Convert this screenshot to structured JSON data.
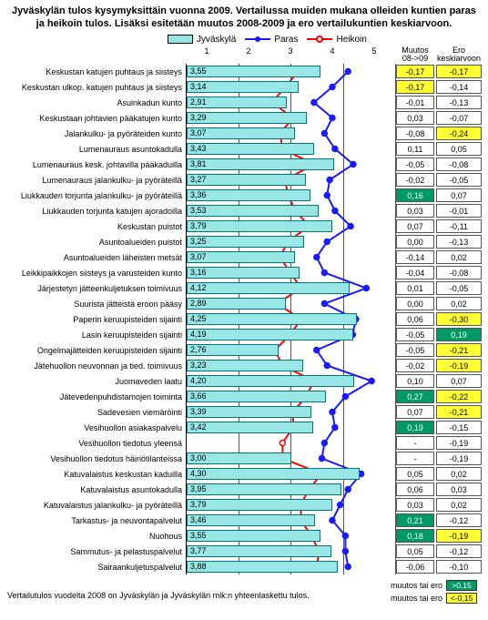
{
  "title": "Jyväskylän tulos kysymyksittäin vuonna 2009. Vertailussa muiden mukana olleiden kuntien paras ja heikoin tulos. Lisäksi esitetään muutos 2008-2009 ja ero vertailukuntien keskiarvoon.",
  "legend": {
    "bar": "Jyväskylä",
    "paras": "Paras",
    "heikoin": "Heikoin"
  },
  "columns": {
    "muutos": "Muutos 08->09",
    "ero": "Ero keskiarvoon"
  },
  "xaxis": {
    "min": 1,
    "max": 5,
    "ticks": [
      1,
      2,
      3,
      4,
      5
    ]
  },
  "colors": {
    "bar": "#99e6e6",
    "bar_border": "#007777",
    "paras": "#1a1aff",
    "heikoin": "#ff0000",
    "green": "#009966",
    "yellow": "#ffff33",
    "white": "#ffffff",
    "grid": "#555555"
  },
  "footnote": "Vertailutulos vuodelta 2008 on Jyväskylän ja Jyväskylän mlk:n yhteenlaskettu tulos.",
  "threshold": {
    "pos_label": "muutos tai ero",
    "pos_val": ">0,15",
    "neg_label": "muutos tai ero",
    "neg_val": "<-0,15"
  },
  "rows": [
    {
      "label": "Keskustan katujen puhtaus ja siisteys",
      "v": 3.55,
      "p": 4.1,
      "h": 3.15,
      "m": "-0,17",
      "e": "-0,17",
      "mc": "yellow",
      "ec": "yellow"
    },
    {
      "label": "Keskustan ulkop. katujen puhtaus ja siisteys",
      "v": 3.14,
      "p": 3.8,
      "h": 2.9,
      "m": "-0,17",
      "e": "-0,14",
      "mc": "yellow",
      "ec": "white"
    },
    {
      "label": "Asuinkadun kunto",
      "v": 2.91,
      "p": 3.45,
      "h": 2.65,
      "m": "-0,01",
      "e": "-0,13",
      "mc": "white",
      "ec": "white"
    },
    {
      "label": "Keskustaan johtavien pääkatujen kunto",
      "v": 3.29,
      "p": 3.8,
      "h": 3.05,
      "m": "0,03",
      "e": "-0,07",
      "mc": "white",
      "ec": "white"
    },
    {
      "label": "Jalankulku- ja pyöräteiden kunto",
      "v": 3.07,
      "p": 3.65,
      "h": 2.8,
      "m": "-0,08",
      "e": "-0,24",
      "mc": "white",
      "ec": "yellow"
    },
    {
      "label": "Lumenauraus asuntokadulla",
      "v": 3.43,
      "p": 3.85,
      "h": 2.85,
      "m": "0,11",
      "e": "0,05",
      "mc": "white",
      "ec": "white"
    },
    {
      "label": "Lumenauraus kesk. johtavilla pääkaduilla",
      "v": 3.81,
      "p": 4.2,
      "h": 3.45,
      "m": "-0,05",
      "e": "-0,08",
      "mc": "white",
      "ec": "white"
    },
    {
      "label": "Lumenauraus jalankulku- ja pyöräteillä",
      "v": 3.27,
      "p": 3.75,
      "h": 2.9,
      "m": "-0,02",
      "e": "-0,05",
      "mc": "white",
      "ec": "white"
    },
    {
      "label": "Liukkauden torjunta jalankulku- ja pyöräteillä",
      "v": 3.36,
      "p": 3.7,
      "h": 2.95,
      "m": "0,16",
      "e": "0,07",
      "mc": "green",
      "ec": "white"
    },
    {
      "label": "Liukkauden torjunta katujen ajoradoilla",
      "v": 3.53,
      "p": 3.85,
      "h": 3.1,
      "m": "0,03",
      "e": "-0,01",
      "mc": "white",
      "ec": "white"
    },
    {
      "label": "Keskustan puistot",
      "v": 3.79,
      "p": 4.15,
      "h": 3.35,
      "m": "0,07",
      "e": "-0,11",
      "mc": "white",
      "ec": "white"
    },
    {
      "label": "Asuntoalueiden puistot",
      "v": 3.25,
      "p": 3.7,
      "h": 2.95,
      "m": "0,00",
      "e": "-0,13",
      "mc": "white",
      "ec": "white"
    },
    {
      "label": "Asuntoalueiden läheisten metsät",
      "v": 3.07,
      "p": 3.5,
      "h": 2.8,
      "m": "-0,14",
      "e": "0,02",
      "mc": "white",
      "ec": "white"
    },
    {
      "label": "Leikkipaikkojen siisteys ja varusteiden kunto",
      "v": 3.16,
      "p": 3.65,
      "h": 3.0,
      "m": "-0,04",
      "e": "-0,08",
      "mc": "white",
      "ec": "white"
    },
    {
      "label": "Järjestetyn jätteenkuljetuksen toimivuus",
      "v": 4.12,
      "p": 4.45,
      "h": 3.2,
      "m": "0,01",
      "e": "-0,05",
      "mc": "white",
      "ec": "white"
    },
    {
      "label": "Suurista jätteistä eroon pääsy",
      "v": 2.89,
      "p": 3.65,
      "h": 2.75,
      "m": "0,00",
      "e": "0,02",
      "mc": "white",
      "ec": "white"
    },
    {
      "label": "Paperin keruupisteiden sijainti",
      "v": 4.25,
      "p": 4.25,
      "h": 3.2,
      "m": "0,06",
      "e": "-0,30",
      "mc": "white",
      "ec": "yellow"
    },
    {
      "label": "Lasin keruupisteiden sijainti",
      "v": 4.19,
      "p": 4.19,
      "h": 3.0,
      "m": "-0,05",
      "e": "0,19",
      "mc": "white",
      "ec": "green"
    },
    {
      "label": "Ongelmajätteiden keruupisteiden sijainti",
      "v": 2.76,
      "p": 3.5,
      "h": 2.7,
      "m": "-0,05",
      "e": "-0,21",
      "mc": "white",
      "ec": "yellow"
    },
    {
      "label": "Jätehuollon neuvonnan ja tied. toimivuus",
      "v": 3.23,
      "p": 3.7,
      "h": 2.85,
      "m": "-0,02",
      "e": "-0,19",
      "mc": "white",
      "ec": "yellow"
    },
    {
      "label": "Juomaveden laatu",
      "v": 4.2,
      "p": 4.55,
      "h": 3.45,
      "m": "0,10",
      "e": "0,07",
      "mc": "white",
      "ec": "white"
    },
    {
      "label": "Jätevedenpuhdistamojen toiminta",
      "v": 3.66,
      "p": 4.05,
      "h": 3.3,
      "m": "0,27",
      "e": "-0,22",
      "mc": "green",
      "ec": "yellow"
    },
    {
      "label": "Sadevesien viemäröinti",
      "v": 3.39,
      "p": 3.8,
      "h": 3.05,
      "m": "0,07",
      "e": "-0,21",
      "mc": "white",
      "ec": "yellow"
    },
    {
      "label": "Vesihuollon asiakaspalvelu",
      "v": 3.42,
      "p": 3.85,
      "h": 3.05,
      "m": "0,19",
      "e": "-0,15",
      "mc": "green",
      "ec": "white"
    },
    {
      "label": "Vesihuollon tiedotus yleensä",
      "v": null,
      "p": 3.65,
      "h": 2.85,
      "m": "-",
      "e": "-0,19",
      "mc": "white",
      "ec": "white"
    },
    {
      "label": "Vesihuollon tiedotus häiriötilanteissa",
      "v": 3.0,
      "p": 3.6,
      "h": 2.85,
      "m": "-",
      "e": "-0,19",
      "mc": "white",
      "ec": "white"
    },
    {
      "label": "Katuvalaistus keskustan kaduilla",
      "v": 4.3,
      "p": 4.35,
      "h": 3.6,
      "m": "0,05",
      "e": "0,02",
      "mc": "white",
      "ec": "white"
    },
    {
      "label": "Katuvalaistus asuntokadulla",
      "v": 3.95,
      "p": 4.1,
      "h": 3.35,
      "m": "0,06",
      "e": "0,03",
      "mc": "white",
      "ec": "white"
    },
    {
      "label": "Katuvalaistus jalankulku- ja pyöräteillä",
      "v": 3.79,
      "p": 3.95,
      "h": 3.2,
      "m": "0,03",
      "e": "0,02",
      "mc": "white",
      "ec": "white"
    },
    {
      "label": "Tarkastus- ja neuvontapalvelut",
      "v": 3.46,
      "p": 3.8,
      "h": 3.2,
      "m": "0,21",
      "e": "-0,12",
      "mc": "green",
      "ec": "white"
    },
    {
      "label": "Nuohous",
      "v": 3.55,
      "p": 4.05,
      "h": 3.4,
      "m": "0,18",
      "e": "-0,19",
      "mc": "green",
      "ec": "yellow"
    },
    {
      "label": "Sammutus- ja pelastuspalvelut",
      "v": 3.77,
      "p": 4.05,
      "h": 3.55,
      "m": "0,05",
      "e": "-0,12",
      "mc": "white",
      "ec": "white"
    },
    {
      "label": "Sairaankuljetuspalvelut",
      "v": 3.88,
      "p": 4.1,
      "h": 3.5,
      "m": "-0,06",
      "e": "-0,10",
      "mc": "white",
      "ec": "white"
    }
  ]
}
